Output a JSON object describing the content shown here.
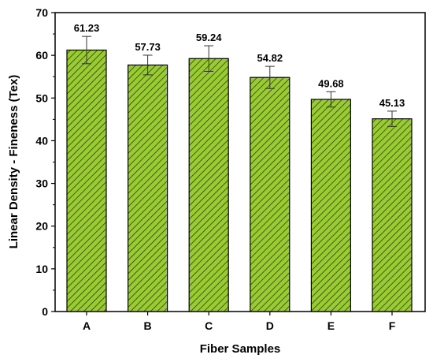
{
  "chart_data": {
    "type": "bar",
    "title": "",
    "xlabel": "Fiber Samples",
    "ylabel": "Linear Density - Fineness (Tex)",
    "categories": [
      "A",
      "B",
      "C",
      "D",
      "E",
      "F"
    ],
    "values": [
      61.23,
      57.73,
      59.24,
      54.82,
      49.68,
      45.13
    ],
    "value_labels": [
      "61.23",
      "57.73",
      "59.24",
      "54.82",
      "49.68",
      "45.13"
    ],
    "error": [
      3.2,
      2.3,
      3.0,
      2.6,
      1.8,
      1.8
    ],
    "ylim": [
      0,
      70
    ],
    "yticks": [
      "0",
      "10",
      "20",
      "30",
      "40",
      "50",
      "60",
      "70"
    ],
    "ytick_values": [
      0,
      10,
      20,
      30,
      40,
      50,
      60,
      70
    ],
    "grid": false,
    "bar_fill": "#99cc33",
    "bar_hatch": "#2f3f0a",
    "bar_edge": "#000000"
  }
}
